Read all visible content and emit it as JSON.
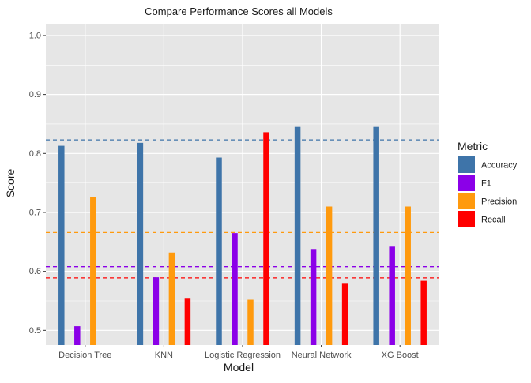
{
  "chart_data": {
    "type": "bar",
    "title": "Compare Performance Scores all Models",
    "xlabel": "Model",
    "ylabel": "Score",
    "categories": [
      "Decision Tree",
      "KNN",
      "Logistic Regression",
      "Neural Network",
      "XG Boost"
    ],
    "ylim": [
      0.475,
      1.02
    ],
    "yticks": [
      0.5,
      0.6,
      0.7,
      0.8,
      0.9,
      1.0
    ],
    "ytick_labels": [
      "0.5",
      "0.6",
      "0.7",
      "0.8",
      "0.9",
      "1.0"
    ],
    "grid": true,
    "legend": {
      "title": "Metric",
      "placement": "right"
    },
    "series": [
      {
        "name": "Accuracy",
        "color": "#3E74A9",
        "values": [
          0.813,
          0.818,
          0.793,
          0.845,
          0.845
        ]
      },
      {
        "name": "F1",
        "color": "#8B00E8",
        "values": [
          0.507,
          0.59,
          0.665,
          0.638,
          0.642
        ]
      },
      {
        "name": "Precision",
        "color": "#FF9A0E",
        "values": [
          0.726,
          0.632,
          0.552,
          0.71,
          0.71
        ]
      },
      {
        "name": "Recall",
        "color": "#FF0000",
        "values": [
          null,
          0.555,
          0.836,
          0.579,
          0.584
        ]
      }
    ],
    "reference_lines": [
      {
        "series": "Accuracy",
        "value": 0.823
      },
      {
        "series": "Precision",
        "value": 0.666
      },
      {
        "series": "F1",
        "value": 0.608
      },
      {
        "series": "Recall",
        "value": 0.589
      }
    ],
    "panel_background": "#E6E6E6",
    "grid_color": "#FFFFFF"
  }
}
